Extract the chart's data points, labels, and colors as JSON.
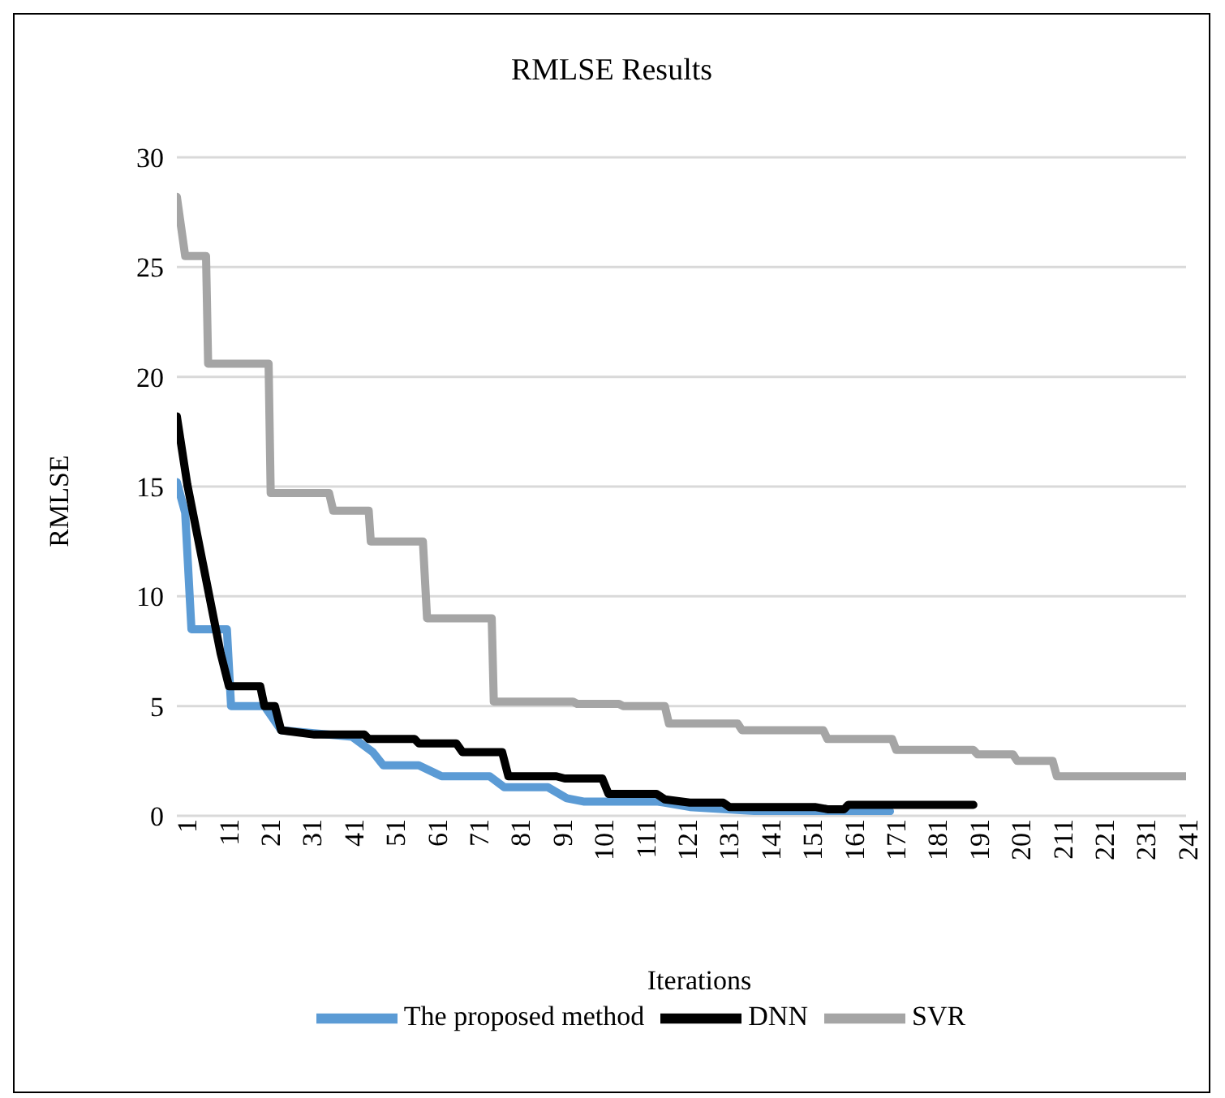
{
  "chart_data": {
    "type": "line",
    "title": "RMLSE Results",
    "xlabel": "Iterations",
    "ylabel": "RMLSE",
    "xlim": [
      1,
      243
    ],
    "xticks": [
      1,
      11,
      21,
      31,
      41,
      51,
      61,
      71,
      81,
      91,
      101,
      111,
      121,
      131,
      141,
      151,
      161,
      171,
      181,
      191,
      201,
      211,
      221,
      231,
      241
    ],
    "ylim": [
      0,
      30
    ],
    "yticks": [
      0,
      5,
      10,
      15,
      20,
      25,
      30
    ],
    "grid": "y",
    "legend": "bottom",
    "marker": "none",
    "line_style": "solid",
    "series": [
      {
        "name": "The proposed method",
        "color": "#5b9bd5",
        "x": [
          1,
          3,
          4.5,
          13,
          14,
          22,
          26,
          43,
          48,
          50.5,
          59,
          64.5,
          76,
          79.5,
          90,
          94.5,
          98.5,
          116,
          118,
          124,
          141,
          172
        ],
        "values": [
          15.2,
          13.8,
          8.5,
          8.5,
          5.0,
          5.0,
          3.9,
          3.6,
          2.9,
          2.3,
          2.3,
          1.8,
          1.8,
          1.3,
          1.3,
          0.8,
          0.65,
          0.65,
          0.6,
          0.4,
          0.2,
          0.2
        ]
      },
      {
        "name": "DNN",
        "color": "#000000",
        "x": [
          1,
          3.5,
          11.5,
          13.5,
          21,
          22,
          24.5,
          26,
          34,
          46,
          47,
          58,
          59,
          68,
          69.5,
          79,
          80.5,
          92,
          94,
          103,
          104.5,
          116,
          118,
          124,
          132,
          133.5,
          154,
          157,
          161,
          162,
          192
        ],
        "values": [
          18.2,
          15.1,
          7.4,
          5.9,
          5.9,
          5.0,
          5.0,
          3.9,
          3.7,
          3.7,
          3.5,
          3.5,
          3.3,
          3.3,
          2.9,
          2.9,
          1.8,
          1.8,
          1.7,
          1.7,
          1.0,
          1.0,
          0.75,
          0.6,
          0.6,
          0.4,
          0.4,
          0.3,
          0.3,
          0.5,
          0.5
        ]
      },
      {
        "name": "SVR",
        "color": "#a5a5a5",
        "x": [
          1,
          3,
          8,
          8.5,
          23,
          23.5,
          37.5,
          38.5,
          47,
          47.5,
          60,
          61,
          76.5,
          77,
          96,
          97,
          107,
          108,
          118,
          119,
          135.5,
          136.5,
          156,
          157,
          172.5,
          173.5,
          192,
          193,
          201.5,
          202.5,
          211,
          212,
          243
        ],
        "values": [
          28.2,
          25.5,
          25.5,
          20.6,
          20.6,
          14.7,
          14.7,
          13.9,
          13.9,
          12.5,
          12.5,
          9.0,
          9.0,
          5.2,
          5.2,
          5.1,
          5.1,
          5.0,
          5.0,
          4.2,
          4.2,
          3.9,
          3.9,
          3.5,
          3.5,
          3.0,
          3.0,
          2.8,
          2.8,
          2.5,
          2.5,
          1.8,
          1.8
        ]
      }
    ]
  }
}
